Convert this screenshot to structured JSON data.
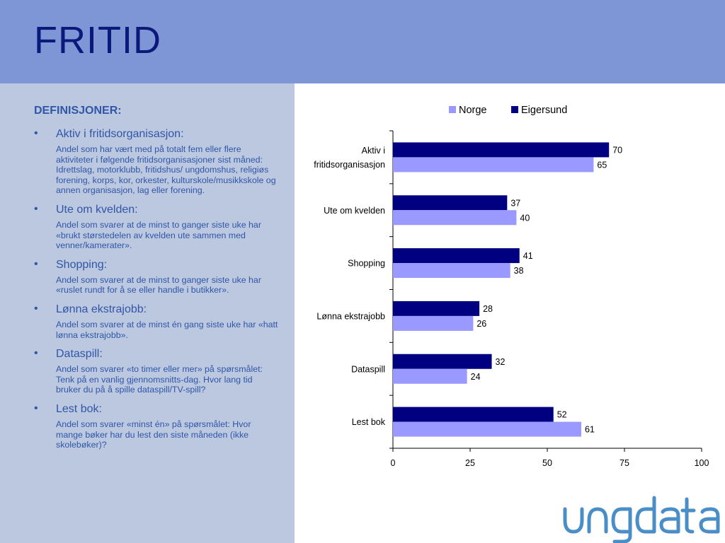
{
  "header": {
    "title": "FRITID"
  },
  "definitions": {
    "heading": "DEFINISJONER:",
    "items": [
      {
        "term": "Aktiv i fritidsorganisasjon:",
        "text": "Andel som har vært med på totalt fem eller flere aktiviteter i følgende fritidsorganisasjoner sist måned: Idrettslag, motorklubb, fritidshus/ ungdomshus, religiøs forening, korps, kor, orkester, kulturskole/musikkskole og annen organisasjon, lag eller forening."
      },
      {
        "term": "Ute om kvelden:",
        "text": "Andel som svarer at de minst to ganger siste uke har «brukt størstedelen av kvelden ute sammen med venner/kamerater»."
      },
      {
        "term": "Shopping:",
        "text": "Andel som svarer at de minst to ganger siste uke har «ruslet rundt for å se eller handle i butikker»."
      },
      {
        "term": "Lønna ekstrajobb:",
        "text": "Andel som svarer at de minst én gang siste uke har «hatt lønna ekstrajobb»."
      },
      {
        "term": "Dataspill:",
        "text": "Andel som svarer «to timer eller mer» på spørsmålet: Tenk på en vanlig gjennomsnitts-dag. Hvor lang tid bruker du på å spille dataspill/TV-spill?"
      },
      {
        "term": "Lest bok:",
        "text": "Andel som svarer «minst én» på spørsmålet: Hvor mange bøker har du lest den siste måneden (ikke skolebøker)?"
      }
    ]
  },
  "chart_data": {
    "type": "bar",
    "orientation": "horizontal",
    "categories": [
      "Aktiv i fritidsorganisasjon",
      "Ute om kvelden",
      "Shopping",
      "Lønna ekstrajobb",
      "Dataspill",
      "Lest bok"
    ],
    "category_lines": [
      [
        "Aktiv i",
        "fritidsorganisasjon"
      ],
      [
        "Ute om kvelden"
      ],
      [
        "Shopping"
      ],
      [
        "Lønna ekstrajobb"
      ],
      [
        "Dataspill"
      ],
      [
        "Lest bok"
      ]
    ],
    "series": [
      {
        "name": "Eigersund",
        "color": "#000080",
        "values": [
          70,
          37,
          41,
          28,
          32,
          52
        ]
      },
      {
        "name": "Norge",
        "color": "#9999ff",
        "values": [
          65,
          40,
          38,
          26,
          24,
          61
        ]
      }
    ],
    "legend_order": [
      "Norge",
      "Eigersund"
    ],
    "legend_position": "top",
    "xlim": [
      0,
      100
    ],
    "xticks": [
      0,
      25,
      50,
      75,
      100
    ],
    "grid": false,
    "data_labels": true
  },
  "logo": {
    "text": "ungdata",
    "color": "#4a8ec8"
  }
}
